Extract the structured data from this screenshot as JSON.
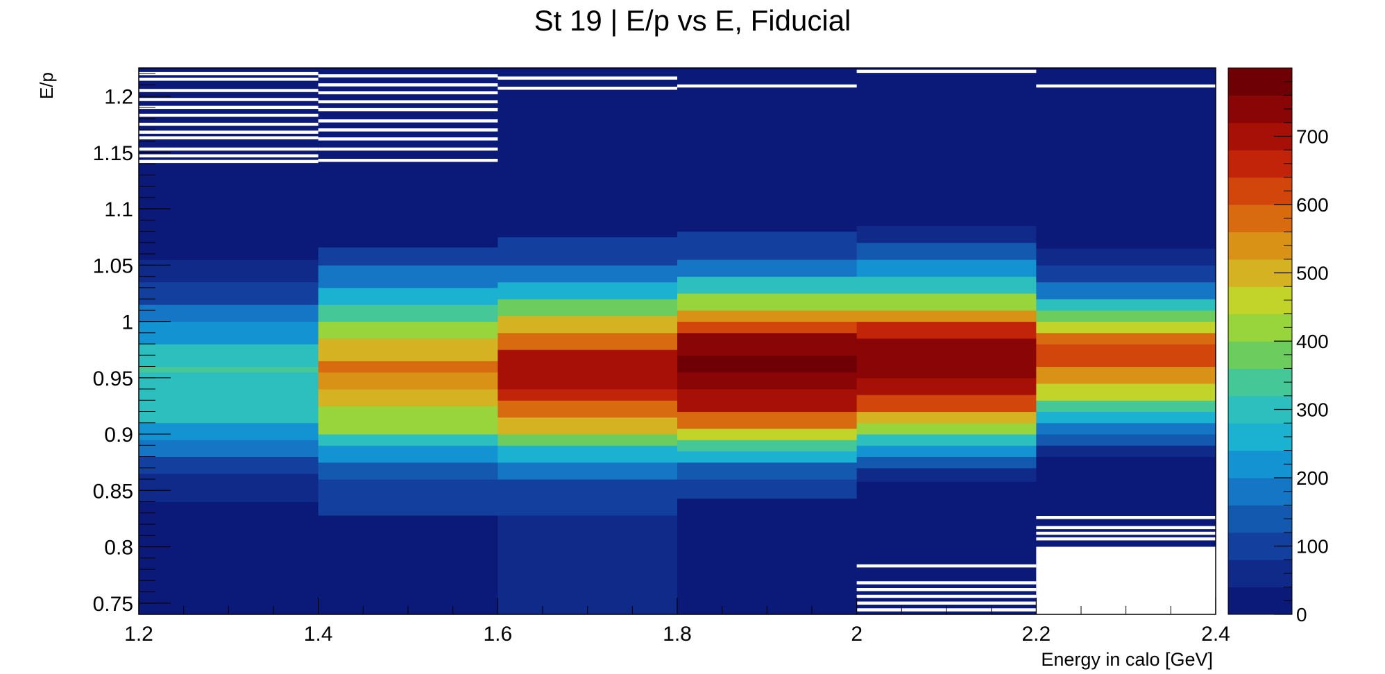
{
  "chart_data": {
    "type": "heatmap",
    "title": "St 19 | E/p vs E, Fiducial",
    "xlabel": "Energy in calo [GeV]",
    "ylabel": "E/p",
    "xlim": [
      1.2,
      2.4
    ],
    "ylim": [
      0.74,
      1.225
    ],
    "x_ticks": [
      "1.2",
      "1.4",
      "1.6",
      "1.8",
      "2",
      "2.2",
      "2.4"
    ],
    "y_ticks": [
      "0.75",
      "0.8",
      "0.85",
      "0.9",
      "0.95",
      "1",
      "1.05",
      "1.1",
      "1.15",
      "1.2"
    ],
    "z_ticks": [
      "0",
      "100",
      "200",
      "300",
      "400",
      "500",
      "600",
      "700"
    ],
    "zlim": [
      0,
      800
    ],
    "x_bin_edges": [
      1.2,
      1.4,
      1.6,
      1.8,
      2.0,
      2.2,
      2.4
    ],
    "y_bin_width": 0.005,
    "palette": [
      "#0b1a78",
      "#102a8a",
      "#13409e",
      "#1459b0",
      "#1476c4",
      "#1493d2",
      "#1ab2d0",
      "#2cbfbe",
      "#46c797",
      "#6ccd5e",
      "#98d43c",
      "#c2d42a",
      "#d4b221",
      "#d99116",
      "#d86a10",
      "#d3460b",
      "#c12408",
      "#a71007",
      "#8a0506",
      "#6e0005"
    ],
    "empty_color": "#ffffff",
    "columns": [
      {
        "x": [
          1.2,
          1.4
        ],
        "rows": [
          {
            "y": [
              0.74,
              0.84
            ],
            "z": 30
          },
          {
            "y": [
              0.84,
              0.865
            ],
            "z": 70
          },
          {
            "y": [
              0.865,
              0.88
            ],
            "z": 110
          },
          {
            "y": [
              0.88,
              0.895
            ],
            "z": 160
          },
          {
            "y": [
              0.895,
              0.91
            ],
            "z": 210
          },
          {
            "y": [
              0.91,
              0.955
            ],
            "z": 290
          },
          {
            "y": [
              0.955,
              0.96
            ],
            "z": 320
          },
          {
            "y": [
              0.96,
              0.98
            ],
            "z": 280
          },
          {
            "y": [
              0.98,
              1.0
            ],
            "z": 200
          },
          {
            "y": [
              1.0,
              1.015
            ],
            "z": 160
          },
          {
            "y": [
              1.015,
              1.035
            ],
            "z": 110
          },
          {
            "y": [
              1.035,
              1.055
            ],
            "z": 60
          },
          {
            "y": [
              1.055,
              1.225
            ],
            "z": 15
          }
        ],
        "empty_y": [
          1.142,
          1.147,
          1.153,
          1.163,
          1.168,
          1.175,
          1.183,
          1.19,
          1.197,
          1.205,
          1.215,
          1.22
        ]
      },
      {
        "x": [
          1.4,
          1.6
        ],
        "rows": [
          {
            "y": [
              0.74,
              0.828
            ],
            "z": 35
          },
          {
            "y": [
              0.828,
              0.86
            ],
            "z": 80
          },
          {
            "y": [
              0.86,
              0.875
            ],
            "z": 140
          },
          {
            "y": [
              0.875,
              0.89
            ],
            "z": 210
          },
          {
            "y": [
              0.89,
              0.9
            ],
            "z": 300
          },
          {
            "y": [
              0.9,
              0.925
            ],
            "z": 420
          },
          {
            "y": [
              0.925,
              0.94
            ],
            "z": 480
          },
          {
            "y": [
              0.94,
              0.955
            ],
            "z": 520
          },
          {
            "y": [
              0.955,
              0.965
            ],
            "z": 560
          },
          {
            "y": [
              0.965,
              0.985
            ],
            "z": 500
          },
          {
            "y": [
              0.985,
              1.0
            ],
            "z": 430
          },
          {
            "y": [
              1.0,
              1.015
            ],
            "z": 350
          },
          {
            "y": [
              1.015,
              1.03
            ],
            "z": 260
          },
          {
            "y": [
              1.03,
              1.05
            ],
            "z": 160
          },
          {
            "y": [
              1.05,
              1.066
            ],
            "z": 80
          },
          {
            "y": [
              1.066,
              1.225
            ],
            "z": 20
          }
        ],
        "empty_y": [
          1.143,
          1.153,
          1.162,
          1.17,
          1.178,
          1.188,
          1.195,
          1.203,
          1.21,
          1.218
        ]
      },
      {
        "x": [
          1.6,
          1.8
        ],
        "rows": [
          {
            "y": [
              0.74,
              0.828
            ],
            "z": 40
          },
          {
            "y": [
              0.828,
              0.86
            ],
            "z": 90
          },
          {
            "y": [
              0.86,
              0.875
            ],
            "z": 160
          },
          {
            "y": [
              0.875,
              0.89
            ],
            "z": 250
          },
          {
            "y": [
              0.89,
              0.9
            ],
            "z": 380
          },
          {
            "y": [
              0.9,
              0.915
            ],
            "z": 490
          },
          {
            "y": [
              0.915,
              0.93
            ],
            "z": 570
          },
          {
            "y": [
              0.93,
              0.94
            ],
            "z": 650
          },
          {
            "y": [
              0.94,
              0.975
            ],
            "z": 700
          },
          {
            "y": [
              0.975,
              0.99
            ],
            "z": 580
          },
          {
            "y": [
              0.99,
              1.005
            ],
            "z": 480
          },
          {
            "y": [
              1.005,
              1.02
            ],
            "z": 360
          },
          {
            "y": [
              1.02,
              1.035
            ],
            "z": 260
          },
          {
            "y": [
              1.035,
              1.05
            ],
            "z": 160
          },
          {
            "y": [
              1.05,
              1.075
            ],
            "z": 80
          },
          {
            "y": [
              1.075,
              1.225
            ],
            "z": 20
          }
        ],
        "empty_y": [
          1.207,
          1.216
        ]
      },
      {
        "x": [
          1.8,
          2.0
        ],
        "rows": [
          {
            "y": [
              0.74,
              0.843
            ],
            "z": 25
          },
          {
            "y": [
              0.843,
              0.86
            ],
            "z": 80
          },
          {
            "y": [
              0.86,
              0.875
            ],
            "z": 150
          },
          {
            "y": [
              0.875,
              0.885
            ],
            "z": 240
          },
          {
            "y": [
              0.885,
              0.895
            ],
            "z": 330
          },
          {
            "y": [
              0.895,
              0.905
            ],
            "z": 440
          },
          {
            "y": [
              0.905,
              0.92
            ],
            "z": 560
          },
          {
            "y": [
              0.92,
              0.94
            ],
            "z": 680
          },
          {
            "y": [
              0.94,
              0.955
            ],
            "z": 740
          },
          {
            "y": [
              0.955,
              0.97
            ],
            "z": 790
          },
          {
            "y": [
              0.97,
              0.99
            ],
            "z": 720
          },
          {
            "y": [
              0.99,
              1.0
            ],
            "z": 620
          },
          {
            "y": [
              1.0,
              1.01
            ],
            "z": 520
          },
          {
            "y": [
              1.01,
              1.025
            ],
            "z": 410
          },
          {
            "y": [
              1.025,
              1.04
            ],
            "z": 290
          },
          {
            "y": [
              1.04,
              1.055
            ],
            "z": 180
          },
          {
            "y": [
              1.055,
              1.08
            ],
            "z": 90
          },
          {
            "y": [
              1.08,
              1.225
            ],
            "z": 20
          }
        ],
        "empty_y": [
          1.209
        ]
      },
      {
        "x": [
          2.0,
          2.2
        ],
        "rows": [
          {
            "y": [
              0.74,
              0.858
            ],
            "z": 15
          },
          {
            "y": [
              0.858,
              0.87
            ],
            "z": 70
          },
          {
            "y": [
              0.87,
              0.88
            ],
            "z": 130
          },
          {
            "y": [
              0.88,
              0.89
            ],
            "z": 210
          },
          {
            "y": [
              0.89,
              0.9
            ],
            "z": 300
          },
          {
            "y": [
              0.9,
              0.91
            ],
            "z": 400
          },
          {
            "y": [
              0.91,
              0.92
            ],
            "z": 500
          },
          {
            "y": [
              0.92,
              0.935
            ],
            "z": 600
          },
          {
            "y": [
              0.935,
              0.95
            ],
            "z": 690
          },
          {
            "y": [
              0.95,
              0.985
            ],
            "z": 740
          },
          {
            "y": [
              0.985,
              1.0
            ],
            "z": 650
          },
          {
            "y": [
              1.0,
              1.01
            ],
            "z": 540
          },
          {
            "y": [
              1.01,
              1.025
            ],
            "z": 430
          },
          {
            "y": [
              1.025,
              1.04
            ],
            "z": 310
          },
          {
            "y": [
              1.04,
              1.055
            ],
            "z": 200
          },
          {
            "y": [
              1.055,
              1.07
            ],
            "z": 120
          },
          {
            "y": [
              1.07,
              1.085
            ],
            "z": 60
          },
          {
            "y": [
              1.085,
              1.225
            ],
            "z": 15
          }
        ],
        "empty_y": [
          0.744,
          0.75,
          0.756,
          0.762,
          0.768,
          0.783,
          1.222
        ]
      },
      {
        "x": [
          2.2,
          2.4
        ],
        "rows": [
          {
            "y": [
              0.8,
              0.88
            ],
            "z": 15
          },
          {
            "y": [
              0.88,
              0.89
            ],
            "z": 60
          },
          {
            "y": [
              0.89,
              0.9
            ],
            "z": 120
          },
          {
            "y": [
              0.9,
              0.91
            ],
            "z": 190
          },
          {
            "y": [
              0.91,
              0.92
            ],
            "z": 270
          },
          {
            "y": [
              0.92,
              0.93
            ],
            "z": 350
          },
          {
            "y": [
              0.93,
              0.945
            ],
            "z": 450
          },
          {
            "y": [
              0.945,
              0.96
            ],
            "z": 540
          },
          {
            "y": [
              0.96,
              0.98
            ],
            "z": 600
          },
          {
            "y": [
              0.98,
              0.99
            ],
            "z": 560
          },
          {
            "y": [
              0.99,
              1.0
            ],
            "z": 460
          },
          {
            "y": [
              1.0,
              1.01
            ],
            "z": 370
          },
          {
            "y": [
              1.01,
              1.02
            ],
            "z": 280
          },
          {
            "y": [
              1.02,
              1.035
            ],
            "z": 190
          },
          {
            "y": [
              1.035,
              1.05
            ],
            "z": 110
          },
          {
            "y": [
              1.05,
              1.065
            ],
            "z": 60
          },
          {
            "y": [
              1.065,
              1.085
            ],
            "z": 30
          },
          {
            "y": [
              1.085,
              1.225
            ],
            "z": 15
          }
        ],
        "empty_y": [
          0.807,
          0.812,
          0.817,
          0.826,
          1.209
        ],
        "empty_ranges": [
          [
            0.74,
            0.8
          ]
        ]
      }
    ],
    "grid": false,
    "legend": "none",
    "colorbar": "right"
  }
}
